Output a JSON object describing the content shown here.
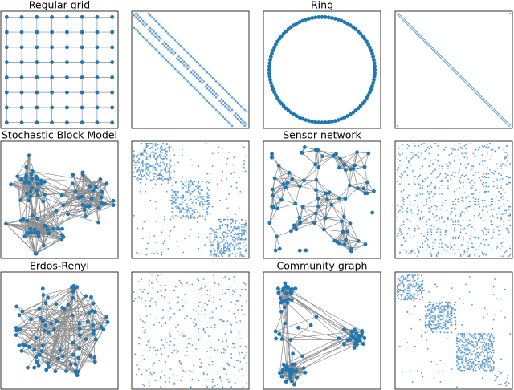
{
  "panels": [
    {
      "title": "Regular grid"
    },
    {
      "title": "Ring"
    },
    {
      "title": "Stochastic Block Model"
    },
    {
      "title": "Sensor network"
    },
    {
      "title": "Erdos-Renyi"
    },
    {
      "title": "Community graph"
    }
  ]
}
